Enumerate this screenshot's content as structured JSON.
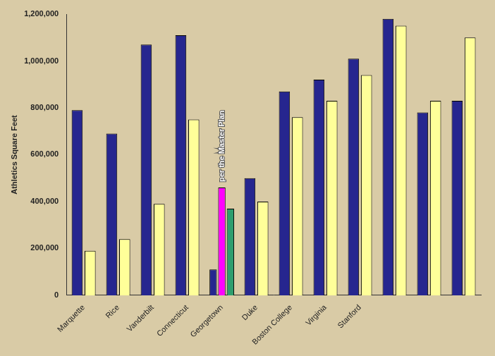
{
  "chart_data": {
    "type": "bar",
    "y_label": "Athletics Square Feet",
    "categories": [
      "Marquette",
      "Rice",
      "Vanderbilt",
      "Connecticut",
      "Georgetown",
      "Duke",
      "Boston College",
      "Virginia",
      "Stanford",
      null,
      null,
      null
    ],
    "series": [
      {
        "color": "#26268f",
        "values": [
          790000,
          690000,
          1070000,
          1110000,
          110000,
          500000,
          870000,
          920000,
          1010000,
          1180000,
          780000,
          830000
        ]
      },
      {
        "colors": [
          "#ffff99",
          "#ffff99",
          "#ffff99",
          "#ffff99",
          "#ff00ff",
          "#ffff99",
          "#ffff99",
          "#ffff99",
          "#ffff99",
          "#ffff99",
          "#ffff99",
          "#ffff99"
        ],
        "values": [
          190000,
          240000,
          390000,
          750000,
          460000,
          400000,
          760000,
          830000,
          940000,
          1150000,
          830000,
          1100000
        ]
      },
      {
        "color": "#2e9e6e",
        "values": [
          null,
          null,
          null,
          null,
          370000,
          null,
          null,
          null,
          null,
          null,
          null,
          null
        ]
      }
    ],
    "ylim": [
      0,
      1200000
    ],
    "yticks": [
      0,
      {
        "value": 200000,
        "label": "200,000"
      },
      {
        "value": 400000,
        "label": "400,000"
      },
      {
        "value": 600000,
        "label": "600,000"
      },
      {
        "value": 800000,
        "label": "800,000"
      },
      {
        "value": 1000000,
        "label": "1,000,000"
      },
      {
        "value": 1200000,
        "label": "1,200,000"
      }
    ],
    "grid": false,
    "annotations": [
      {
        "text": "per the Master Plan",
        "category": "Georgetown"
      }
    ]
  }
}
